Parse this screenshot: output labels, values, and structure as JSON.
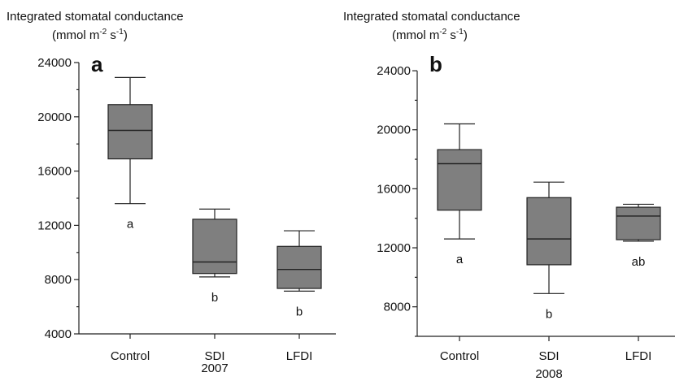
{
  "chart_data": [
    {
      "type": "box",
      "panel": "a",
      "ylabel_line1": "Integrated stomatal conductance",
      "ylabel_line2_base": "(mmol m",
      "ylabel_sup1": "-2",
      "ylabel_mid": " s",
      "ylabel_sup2": "-1",
      "ylabel_end": ")",
      "xlabel": "2007",
      "ylim": [
        4000,
        24000
      ],
      "major_ticks": [
        4000,
        8000,
        12000,
        16000,
        20000,
        24000
      ],
      "tick_labels": [
        "4000",
        "8000",
        "12000",
        "16000",
        "20000",
        "24000"
      ],
      "minor_ticks": [
        6000,
        10000,
        14000,
        18000,
        22000
      ],
      "categories": [
        "Control",
        "SDI",
        "LFDI"
      ],
      "boxes": [
        {
          "whisker_low": 13600,
          "q1": 16900,
          "median": 19000,
          "q3": 20900,
          "whisker_high": 22900,
          "letter": "a"
        },
        {
          "whisker_low": 8200,
          "q1": 8450,
          "median": 9300,
          "q3": 12450,
          "whisker_high": 13200,
          "letter": "b"
        },
        {
          "whisker_low": 7150,
          "q1": 7350,
          "median": 8750,
          "q3": 10450,
          "whisker_high": 11600,
          "letter": "b"
        }
      ]
    },
    {
      "type": "box",
      "panel": "b",
      "ylabel_line1": "Integrated stomatal conductance",
      "ylabel_line2_base": "(mmol m",
      "ylabel_sup1": "-2",
      "ylabel_mid": " s",
      "ylabel_sup2": "-1",
      "ylabel_end": ")",
      "xlabel": "2008",
      "ylim": [
        6000,
        24500
      ],
      "major_ticks": [
        8000,
        12000,
        16000,
        20000,
        24000
      ],
      "tick_labels": [
        "8000",
        "12000",
        "16000",
        "20000",
        "24000"
      ],
      "minor_ticks": [
        6000,
        10000,
        14000,
        18000,
        22000
      ],
      "categories": [
        "Control",
        "SDI",
        "LFDI"
      ],
      "boxes": [
        {
          "whisker_low": 12600,
          "q1": 14550,
          "median": 17700,
          "q3": 18650,
          "whisker_high": 20400,
          "letter": "a"
        },
        {
          "whisker_low": 8900,
          "q1": 10850,
          "median": 12600,
          "q3": 15400,
          "whisker_high": 16450,
          "letter": "b"
        },
        {
          "whisker_low": 12450,
          "q1": 12550,
          "median": 14150,
          "q3": 14750,
          "whisker_high": 14950,
          "letter": "ab"
        }
      ]
    }
  ]
}
